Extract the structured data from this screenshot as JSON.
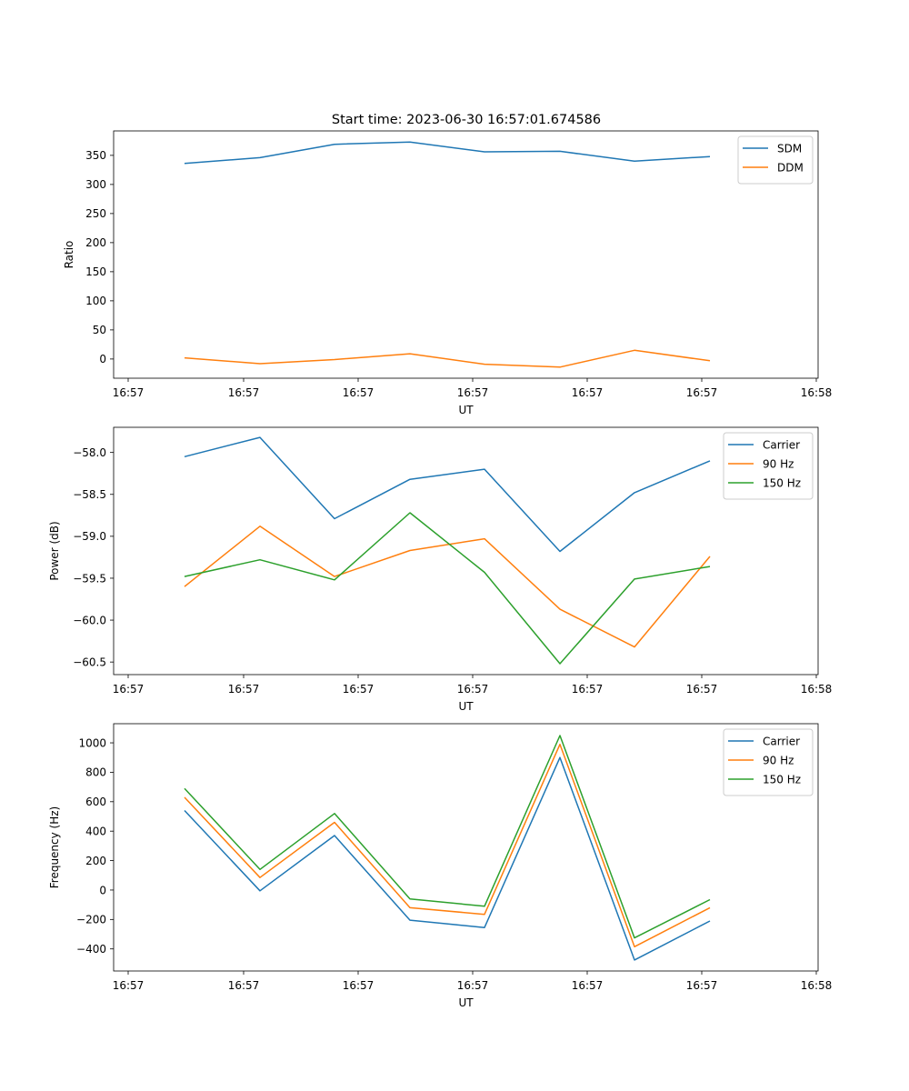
{
  "figure": {
    "title": "Start time: 2023-06-30 16:57:01.674586"
  },
  "colors": {
    "blue": "#1f77b4",
    "orange": "#ff7f0e",
    "green": "#2ca02c"
  },
  "chart_data": [
    {
      "type": "line",
      "xlabel": "UT",
      "ylabel": "Ratio",
      "x_tick_labels": [
        "16:57",
        "16:57",
        "16:57",
        "16:57",
        "16:57",
        "16:57",
        "16:58"
      ],
      "x_points": 8,
      "ylim": [
        -33,
        392
      ],
      "y_ticks": [
        0,
        50,
        100,
        150,
        200,
        250,
        300,
        350
      ],
      "legend_position": "top-right",
      "grid": false,
      "series": [
        {
          "name": "SDM",
          "color": "#1f77b4",
          "values": [
            336,
            346,
            369,
            373,
            356,
            357,
            340,
            348
          ]
        },
        {
          "name": "DDM",
          "color": "#ff7f0e",
          "values": [
            2,
            -8,
            -1,
            9,
            -9,
            -14,
            15,
            -3
          ]
        }
      ]
    },
    {
      "type": "line",
      "xlabel": "UT",
      "ylabel": "Power (dB)",
      "x_tick_labels": [
        "16:57",
        "16:57",
        "16:57",
        "16:57",
        "16:57",
        "16:57",
        "16:58"
      ],
      "x_points": 8,
      "ylim": [
        -60.65,
        -57.7
      ],
      "y_ticks": [
        -60.5,
        -60.0,
        -59.5,
        -59.0,
        -58.5,
        -58.0
      ],
      "y_tick_labels": [
        "−60.5",
        "−60.0",
        "−59.5",
        "−59.0",
        "−58.5",
        "−58.0"
      ],
      "legend_position": "top-right",
      "grid": false,
      "series": [
        {
          "name": "Carrier",
          "color": "#1f77b4",
          "values": [
            -58.05,
            -57.82,
            -58.79,
            -58.32,
            -58.2,
            -59.18,
            -58.48,
            -58.1
          ]
        },
        {
          "name": "90 Hz",
          "color": "#ff7f0e",
          "values": [
            -59.6,
            -58.88,
            -59.48,
            -59.17,
            -59.03,
            -59.87,
            -60.32,
            -59.24
          ]
        },
        {
          "name": "150 Hz",
          "color": "#2ca02c",
          "values": [
            -59.48,
            -59.28,
            -59.52,
            -58.72,
            -59.43,
            -60.52,
            -59.51,
            -59.36
          ]
        }
      ]
    },
    {
      "type": "line",
      "xlabel": "UT",
      "ylabel": "Frequency (Hz)",
      "x_tick_labels": [
        "16:57",
        "16:57",
        "16:57",
        "16:57",
        "16:57",
        "16:57",
        "16:58"
      ],
      "x_points": 8,
      "ylim": [
        -550,
        1130
      ],
      "y_ticks": [
        -400,
        -200,
        0,
        200,
        400,
        600,
        800,
        1000
      ],
      "y_tick_labels": [
        "−400",
        "−200",
        "0",
        "200",
        "400",
        "600",
        "800",
        "1000"
      ],
      "legend_position": "top-right",
      "grid": false,
      "series": [
        {
          "name": "Carrier",
          "color": "#1f77b4",
          "values": [
            540,
            -5,
            370,
            -205,
            -255,
            900,
            -475,
            -210
          ]
        },
        {
          "name": "90 Hz",
          "color": "#ff7f0e",
          "values": [
            630,
            85,
            460,
            -120,
            -165,
            990,
            -385,
            -120
          ]
        },
        {
          "name": "150 Hz",
          "color": "#2ca02c",
          "values": [
            690,
            140,
            520,
            -60,
            -110,
            1050,
            -325,
            -65
          ]
        }
      ]
    }
  ]
}
